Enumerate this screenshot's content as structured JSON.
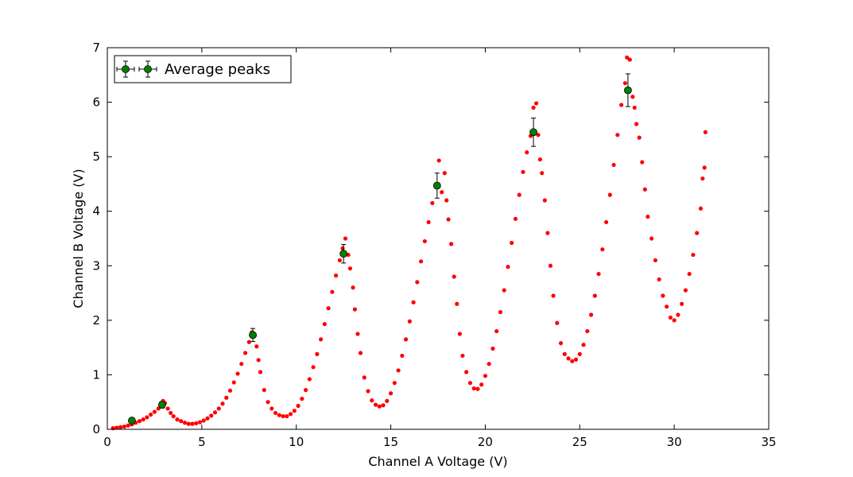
{
  "chart_data": {
    "type": "scatter",
    "title": "",
    "xlabel": "Channel A Voltage (V)",
    "ylabel": "Channel B Voltage (V)",
    "xlim": [
      0,
      35
    ],
    "ylim": [
      0,
      7
    ],
    "x_ticks": [
      0,
      5,
      10,
      15,
      20,
      25,
      30,
      35
    ],
    "y_ticks": [
      0,
      1,
      2,
      3,
      4,
      5,
      6,
      7
    ],
    "grid": false,
    "legend_position": "top-left",
    "colors": {
      "raw": "#ff0000",
      "peaks": "#008000",
      "errorbar": "#000000"
    },
    "series": [
      {
        "name": "",
        "style": "red-dots",
        "points": [
          [
            0.3,
            0.02
          ],
          [
            0.5,
            0.03
          ],
          [
            0.7,
            0.04
          ],
          [
            0.9,
            0.05
          ],
          [
            1.1,
            0.07
          ],
          [
            1.3,
            0.09
          ],
          [
            1.5,
            0.12
          ],
          [
            1.7,
            0.15
          ],
          [
            1.9,
            0.18
          ],
          [
            2.1,
            0.22
          ],
          [
            2.3,
            0.27
          ],
          [
            2.5,
            0.32
          ],
          [
            2.7,
            0.38
          ],
          [
            2.85,
            0.45
          ],
          [
            2.95,
            0.52
          ],
          [
            3.05,
            0.48
          ],
          [
            3.2,
            0.38
          ],
          [
            3.35,
            0.3
          ],
          [
            3.5,
            0.24
          ],
          [
            3.7,
            0.18
          ],
          [
            3.9,
            0.15
          ],
          [
            4.1,
            0.12
          ],
          [
            4.3,
            0.1
          ],
          [
            4.5,
            0.1
          ],
          [
            4.7,
            0.11
          ],
          [
            4.9,
            0.13
          ],
          [
            5.1,
            0.16
          ],
          [
            5.3,
            0.2
          ],
          [
            5.5,
            0.25
          ],
          [
            5.7,
            0.31
          ],
          [
            5.9,
            0.38
          ],
          [
            6.1,
            0.47
          ],
          [
            6.3,
            0.58
          ],
          [
            6.5,
            0.71
          ],
          [
            6.7,
            0.86
          ],
          [
            6.9,
            1.02
          ],
          [
            7.1,
            1.2
          ],
          [
            7.3,
            1.4
          ],
          [
            7.5,
            1.6
          ],
          [
            7.65,
            1.78
          ],
          [
            7.8,
            1.72
          ],
          [
            7.9,
            1.52
          ],
          [
            8.0,
            1.27
          ],
          [
            8.1,
            1.05
          ],
          [
            8.3,
            0.72
          ],
          [
            8.5,
            0.5
          ],
          [
            8.7,
            0.38
          ],
          [
            8.9,
            0.3
          ],
          [
            9.1,
            0.26
          ],
          [
            9.3,
            0.24
          ],
          [
            9.5,
            0.24
          ],
          [
            9.7,
            0.28
          ],
          [
            9.9,
            0.34
          ],
          [
            10.1,
            0.43
          ],
          [
            10.3,
            0.56
          ],
          [
            10.5,
            0.72
          ],
          [
            10.7,
            0.92
          ],
          [
            10.9,
            1.14
          ],
          [
            11.1,
            1.38
          ],
          [
            11.3,
            1.65
          ],
          [
            11.5,
            1.93
          ],
          [
            11.7,
            2.22
          ],
          [
            11.9,
            2.52
          ],
          [
            12.1,
            2.82
          ],
          [
            12.3,
            3.1
          ],
          [
            12.45,
            3.32
          ],
          [
            12.6,
            3.5
          ],
          [
            12.75,
            3.2
          ],
          [
            12.85,
            2.95
          ],
          [
            13.0,
            2.6
          ],
          [
            13.1,
            2.2
          ],
          [
            13.25,
            1.75
          ],
          [
            13.4,
            1.4
          ],
          [
            13.6,
            0.95
          ],
          [
            13.8,
            0.7
          ],
          [
            14.0,
            0.53
          ],
          [
            14.2,
            0.45
          ],
          [
            14.4,
            0.42
          ],
          [
            14.6,
            0.44
          ],
          [
            14.8,
            0.52
          ],
          [
            15.0,
            0.66
          ],
          [
            15.2,
            0.85
          ],
          [
            15.4,
            1.08
          ],
          [
            15.6,
            1.35
          ],
          [
            15.8,
            1.65
          ],
          [
            16.0,
            1.98
          ],
          [
            16.2,
            2.33
          ],
          [
            16.4,
            2.7
          ],
          [
            16.6,
            3.08
          ],
          [
            16.8,
            3.45
          ],
          [
            17.0,
            3.8
          ],
          [
            17.2,
            4.15
          ],
          [
            17.4,
            4.45
          ],
          [
            17.55,
            4.93
          ],
          [
            17.7,
            4.35
          ],
          [
            17.85,
            4.7
          ],
          [
            17.95,
            4.2
          ],
          [
            18.05,
            3.85
          ],
          [
            18.2,
            3.4
          ],
          [
            18.35,
            2.8
          ],
          [
            18.5,
            2.3
          ],
          [
            18.65,
            1.75
          ],
          [
            18.8,
            1.35
          ],
          [
            19.0,
            1.05
          ],
          [
            19.2,
            0.85
          ],
          [
            19.4,
            0.75
          ],
          [
            19.6,
            0.74
          ],
          [
            19.8,
            0.82
          ],
          [
            20.0,
            0.98
          ],
          [
            20.2,
            1.2
          ],
          [
            20.4,
            1.48
          ],
          [
            20.6,
            1.8
          ],
          [
            20.8,
            2.15
          ],
          [
            21.0,
            2.55
          ],
          [
            21.2,
            2.98
          ],
          [
            21.4,
            3.42
          ],
          [
            21.6,
            3.86
          ],
          [
            21.8,
            4.3
          ],
          [
            22.0,
            4.72
          ],
          [
            22.2,
            5.08
          ],
          [
            22.4,
            5.38
          ],
          [
            22.55,
            5.9
          ],
          [
            22.7,
            5.98
          ],
          [
            22.8,
            5.4
          ],
          [
            22.9,
            4.95
          ],
          [
            23.0,
            4.7
          ],
          [
            23.15,
            4.2
          ],
          [
            23.3,
            3.6
          ],
          [
            23.45,
            3.0
          ],
          [
            23.6,
            2.45
          ],
          [
            23.8,
            1.95
          ],
          [
            24.0,
            1.58
          ],
          [
            24.2,
            1.38
          ],
          [
            24.4,
            1.3
          ],
          [
            24.6,
            1.25
          ],
          [
            24.8,
            1.28
          ],
          [
            25.0,
            1.38
          ],
          [
            25.2,
            1.55
          ],
          [
            25.4,
            1.8
          ],
          [
            25.6,
            2.1
          ],
          [
            25.8,
            2.45
          ],
          [
            26.0,
            2.85
          ],
          [
            26.2,
            3.3
          ],
          [
            26.4,
            3.8
          ],
          [
            26.6,
            4.3
          ],
          [
            26.8,
            4.85
          ],
          [
            27.0,
            5.4
          ],
          [
            27.2,
            5.95
          ],
          [
            27.4,
            6.35
          ],
          [
            27.5,
            6.82
          ],
          [
            27.65,
            6.78
          ],
          [
            27.8,
            6.1
          ],
          [
            27.9,
            5.9
          ],
          [
            28.0,
            5.6
          ],
          [
            28.15,
            5.35
          ],
          [
            28.3,
            4.9
          ],
          [
            28.45,
            4.4
          ],
          [
            28.6,
            3.9
          ],
          [
            28.8,
            3.5
          ],
          [
            29.0,
            3.1
          ],
          [
            29.2,
            2.75
          ],
          [
            29.4,
            2.45
          ],
          [
            29.6,
            2.25
          ],
          [
            29.8,
            2.05
          ],
          [
            30.0,
            2.0
          ],
          [
            30.2,
            2.1
          ],
          [
            30.4,
            2.3
          ],
          [
            30.6,
            2.55
          ],
          [
            30.8,
            2.85
          ],
          [
            31.0,
            3.2
          ],
          [
            31.2,
            3.6
          ],
          [
            31.4,
            4.05
          ],
          [
            31.5,
            4.6
          ],
          [
            31.6,
            4.8
          ],
          [
            31.65,
            5.45
          ]
        ]
      },
      {
        "name": "Average peaks",
        "style": "green-errorbar",
        "points": [
          {
            "x": 1.3,
            "y": 0.16,
            "yerr": 0.03
          },
          {
            "x": 2.9,
            "y": 0.45,
            "yerr": 0.06
          },
          {
            "x": 7.7,
            "y": 1.73,
            "yerr": 0.12
          },
          {
            "x": 12.5,
            "y": 3.22,
            "yerr": 0.17
          },
          {
            "x": 17.45,
            "y": 4.47,
            "yerr": 0.23
          },
          {
            "x": 22.55,
            "y": 5.45,
            "yerr": 0.26
          },
          {
            "x": 27.55,
            "y": 6.22,
            "yerr": 0.3
          }
        ]
      }
    ]
  }
}
